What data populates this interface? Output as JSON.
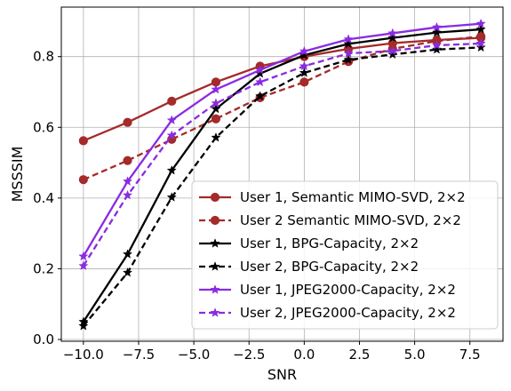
{
  "chart_data": {
    "type": "line",
    "xlabel": "SNR",
    "ylabel": "MSSSIM",
    "xlim": [
      -11,
      9
    ],
    "ylim": [
      -0.005,
      0.94
    ],
    "xticks": [
      -10.0,
      -7.5,
      -5.0,
      -2.5,
      0.0,
      2.5,
      5.0,
      7.5
    ],
    "xtick_labels": [
      "−10.0",
      "−7.5",
      "−5.0",
      "−2.5",
      "0.0",
      "2.5",
      "5.0",
      "7.5"
    ],
    "yticks": [
      0.0,
      0.2,
      0.4,
      0.6,
      0.8
    ],
    "ytick_labels": [
      "0.0",
      "0.2",
      "0.4",
      "0.6",
      "0.8"
    ],
    "grid": true,
    "legend_position": "lower-right",
    "x": [
      -10,
      -8,
      -6,
      -4,
      -2,
      0,
      2,
      4,
      6,
      8
    ],
    "series": [
      {
        "name": "User 1, Semantic MIMO-SVD, 2×2",
        "color": "#a52a2a",
        "dash": "solid",
        "marker": "circle",
        "values": [
          0.562,
          0.614,
          0.674,
          0.728,
          0.773,
          0.8,
          0.822,
          0.838,
          0.847,
          0.853
        ]
      },
      {
        "name": "User 2 Semantic MIMO-SVD, 2×2",
        "color": "#a52a2a",
        "dash": "dashed",
        "marker": "circle",
        "values": [
          0.452,
          0.506,
          0.566,
          0.624,
          0.684,
          0.728,
          0.786,
          0.822,
          0.844,
          0.857
        ]
      },
      {
        "name": "User 1, BPG-Capacity, 2×2",
        "color": "#000000",
        "dash": "solid",
        "marker": "star",
        "values": [
          0.05,
          0.241,
          0.478,
          0.652,
          0.752,
          0.804,
          0.836,
          0.853,
          0.868,
          0.877
        ]
      },
      {
        "name": "User 2, BPG-Capacity, 2×2",
        "color": "#000000",
        "dash": "dashed",
        "marker": "star",
        "values": [
          0.038,
          0.189,
          0.402,
          0.571,
          0.688,
          0.754,
          0.791,
          0.806,
          0.82,
          0.826
        ]
      },
      {
        "name": "User 1, JPEG2000-Capacity, 2×2",
        "color": "#8a2be2",
        "dash": "solid",
        "marker": "star",
        "values": [
          0.235,
          0.447,
          0.62,
          0.707,
          0.762,
          0.815,
          0.849,
          0.866,
          0.883,
          0.893
        ]
      },
      {
        "name": "User 2, JPEG2000-Capacity, 2×2",
        "color": "#8a2be2",
        "dash": "dashed",
        "marker": "star",
        "values": [
          0.208,
          0.408,
          0.577,
          0.668,
          0.728,
          0.773,
          0.809,
          0.816,
          0.832,
          0.837
        ]
      }
    ]
  }
}
